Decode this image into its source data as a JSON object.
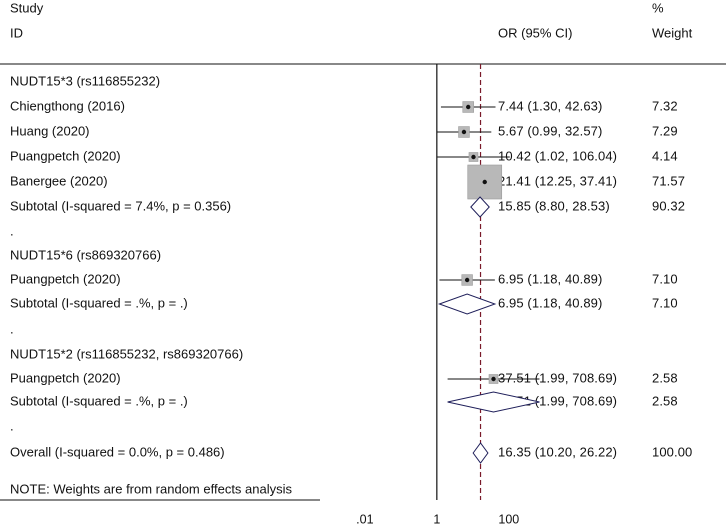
{
  "chart_data": {
    "type": "forest",
    "header": {
      "study_line1": "Study",
      "study_line2": "ID",
      "or_label": "OR (95% CI)",
      "weight_line1": "%",
      "weight_line2": "Weight"
    },
    "axis": {
      "scale": "log",
      "range": [
        0.0005,
        5000
      ],
      "reference_line": 1,
      "overall_line": 16.35,
      "ticks": [
        {
          "value": 0.01,
          "label": ".01"
        },
        {
          "value": 1,
          "label": "1"
        },
        {
          "value": 100,
          "label": "100"
        }
      ]
    },
    "rows": [
      {
        "kind": "group",
        "label": "NUDT15*3 (rs116855232)"
      },
      {
        "kind": "study",
        "label": "Chiengthong (2016)",
        "or": 7.44,
        "lo": 1.3,
        "hi": 42.63,
        "weight": 7.32,
        "estimate_text": "7.44 (1.30, 42.63)",
        "weight_text": "7.32"
      },
      {
        "kind": "study",
        "label": "Huang (2020)",
        "or": 5.67,
        "lo": 0.99,
        "hi": 32.57,
        "weight": 7.29,
        "estimate_text": "5.67 (0.99, 32.57)",
        "weight_text": "7.29"
      },
      {
        "kind": "study",
        "label": "Puangpetch (2020)",
        "or": 10.42,
        "lo": 1.02,
        "hi": 106.04,
        "weight": 4.14,
        "estimate_text": "10.42 (1.02, 106.04)",
        "weight_text": "4.14"
      },
      {
        "kind": "study",
        "label": "Banergee (2020)",
        "or": 21.41,
        "lo": 12.25,
        "hi": 37.41,
        "weight": 71.57,
        "estimate_text": "21.41 (12.25, 37.41)",
        "weight_text": "71.57"
      },
      {
        "kind": "subtotal",
        "label": "Subtotal  (I-squared = 7.4%, p = 0.356)",
        "or": 15.85,
        "lo": 8.8,
        "hi": 28.53,
        "estimate_text": "15.85 (8.80, 28.53)",
        "weight_text": "90.32"
      },
      {
        "kind": "spacer",
        "label": "."
      },
      {
        "kind": "group",
        "label": "NUDT15*6 (rs869320766)"
      },
      {
        "kind": "study",
        "label": "Puangpetch (2020)",
        "or": 6.95,
        "lo": 1.18,
        "hi": 40.89,
        "weight": 7.1,
        "estimate_text": "6.95 (1.18, 40.89)",
        "weight_text": "7.10"
      },
      {
        "kind": "subtotal",
        "label": "Subtotal  (I-squared = .%, p = .)",
        "or": 6.95,
        "lo": 1.18,
        "hi": 40.89,
        "estimate_text": "6.95 (1.18, 40.89)",
        "weight_text": "7.10"
      },
      {
        "kind": "spacer",
        "label": "."
      },
      {
        "kind": "group",
        "label": "NUDT15*2 (rs116855232, rs869320766)"
      },
      {
        "kind": "study",
        "label": "Puangpetch (2020)",
        "or": 37.51,
        "lo": 1.99,
        "hi": 708.69,
        "weight": 2.58,
        "estimate_text": "37.51 (1.99, 708.69)",
        "weight_text": "2.58"
      },
      {
        "kind": "subtotal",
        "label": "Subtotal  (I-squared = .%, p = .)",
        "or": 37.51,
        "lo": 1.99,
        "hi": 708.69,
        "estimate_text": "37.51 (1.99, 708.69)",
        "weight_text": "2.58"
      },
      {
        "kind": "spacer",
        "label": "."
      },
      {
        "kind": "overall",
        "label": "Overall  (I-squared = 0.0%, p = 0.486)",
        "or": 16.35,
        "lo": 10.2,
        "hi": 26.22,
        "estimate_text": "16.35 (10.20, 26.22)",
        "weight_text": "100.00"
      }
    ],
    "note": "NOTE: Weights are from random effects analysis",
    "colors": {
      "ink": "#111111",
      "box": "#b8b8b8",
      "diamond": "#1f1f5a",
      "overall_line": "#7a1a2a"
    }
  }
}
